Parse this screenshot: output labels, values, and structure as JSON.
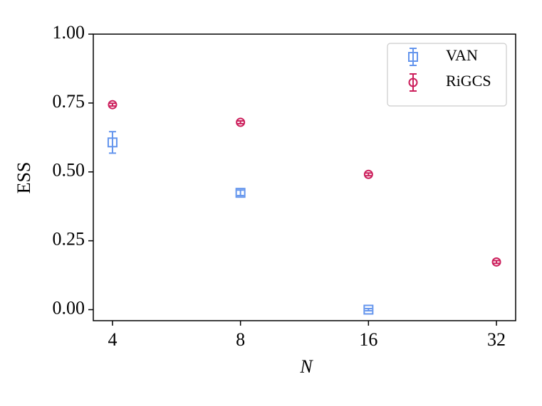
{
  "chart_data": {
    "type": "scatter",
    "xlabel": "N",
    "ylabel": "ESS",
    "categories": [
      "4",
      "8",
      "16",
      "32"
    ],
    "xlim": [
      -0.15,
      3.15
    ],
    "ylim": [
      -0.04,
      1.0
    ],
    "yticks": [
      {
        "value": 0,
        "label": "0.00"
      },
      {
        "value": 0.25,
        "label": "0.25"
      },
      {
        "value": 0.5,
        "label": "0.50"
      },
      {
        "value": 0.75,
        "label": "0.75"
      },
      {
        "value": 1,
        "label": "1.00"
      }
    ],
    "legend": "upper right",
    "series": [
      {
        "name": "VAN",
        "color": "#6495ed",
        "marker": "square",
        "values": [
          0.607,
          0.424,
          0.0,
          null
        ],
        "errors": [
          0.039,
          0.01,
          0.004,
          null
        ]
      },
      {
        "name": "RiGCS",
        "color": "#cc1f5c",
        "marker": "circle",
        "values": [
          0.744,
          0.68,
          0.491,
          0.173
        ],
        "errors": [
          0.005,
          0.005,
          0.005,
          0.005
        ]
      }
    ]
  }
}
